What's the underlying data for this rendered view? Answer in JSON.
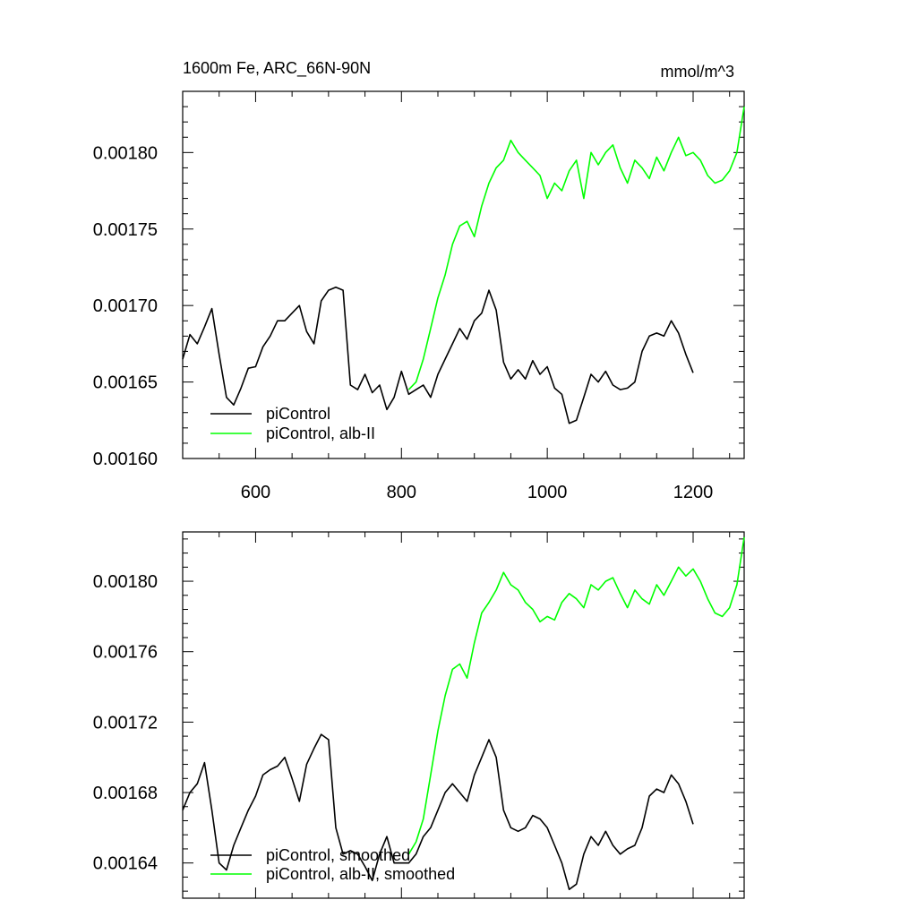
{
  "chart_data": [
    {
      "type": "line",
      "title": "1600m Fe, ARC_66N-90N",
      "units": "mmol/m^3",
      "xlim": [
        500,
        1270
      ],
      "ylim": [
        0.0016,
        0.00184
      ],
      "xticks": [
        600,
        800,
        1000,
        1200
      ],
      "yticks": [
        0.0016,
        0.00165,
        0.0017,
        0.00175,
        0.0018
      ],
      "ytick_labels": [
        "0.00160",
        "0.00165",
        "0.00170",
        "0.00175",
        "0.00180"
      ],
      "grid": false,
      "legend": "bottom-left",
      "series": [
        {
          "name": "piControl",
          "color": "#000000",
          "x": [
            500,
            510,
            520,
            530,
            540,
            550,
            560,
            570,
            580,
            590,
            600,
            610,
            620,
            630,
            640,
            650,
            660,
            670,
            680,
            690,
            700,
            710,
            720,
            730,
            740,
            750,
            760,
            770,
            780,
            790,
            800,
            810,
            820,
            830,
            840,
            850,
            860,
            870,
            880,
            890,
            900,
            910,
            920,
            930,
            940,
            950,
            960,
            970,
            980,
            990,
            1000,
            1010,
            1020,
            1030,
            1040,
            1050,
            1060,
            1070,
            1080,
            1090,
            1100,
            1110,
            1120,
            1130,
            1140,
            1150,
            1160,
            1170,
            1180,
            1190,
            1200
          ],
          "y": [
            0.001665,
            0.001681,
            0.001675,
            0.001686,
            0.001698,
            0.001668,
            0.00164,
            0.001635,
            0.001646,
            0.001659,
            0.00166,
            0.001673,
            0.00168,
            0.00169,
            0.00169,
            0.001695,
            0.0017,
            0.001683,
            0.001675,
            0.001703,
            0.00171,
            0.001712,
            0.00171,
            0.001648,
            0.001645,
            0.001655,
            0.001643,
            0.001648,
            0.001632,
            0.00164,
            0.001657,
            0.001642,
            0.001645,
            0.001648,
            0.00164,
            0.001655,
            0.001665,
            0.001675,
            0.001685,
            0.001678,
            0.00169,
            0.001695,
            0.00171,
            0.001697,
            0.001663,
            0.001652,
            0.001658,
            0.001652,
            0.001664,
            0.001655,
            0.00166,
            0.001646,
            0.001642,
            0.001623,
            0.001625,
            0.00164,
            0.001655,
            0.00165,
            0.001657,
            0.001648,
            0.001645,
            0.001646,
            0.00165,
            0.00167,
            0.00168,
            0.001682,
            0.00168,
            0.00169,
            0.001682,
            0.001668,
            0.001656
          ]
        },
        {
          "name": "piControl, alb-II",
          "color": "#00ff00",
          "x": [
            810,
            820,
            830,
            840,
            850,
            860,
            870,
            880,
            890,
            900,
            910,
            920,
            930,
            940,
            950,
            960,
            970,
            980,
            990,
            1000,
            1010,
            1020,
            1030,
            1040,
            1050,
            1060,
            1070,
            1080,
            1090,
            1100,
            1110,
            1120,
            1130,
            1140,
            1150,
            1160,
            1170,
            1180,
            1190,
            1200,
            1210,
            1220,
            1230,
            1240,
            1250,
            1260,
            1270
          ],
          "y": [
            0.001645,
            0.00165,
            0.001665,
            0.001685,
            0.001705,
            0.00172,
            0.00174,
            0.001752,
            0.001755,
            0.001745,
            0.001765,
            0.00178,
            0.00179,
            0.001795,
            0.001808,
            0.0018,
            0.001795,
            0.00179,
            0.001785,
            0.00177,
            0.00178,
            0.001775,
            0.001788,
            0.001795,
            0.00177,
            0.0018,
            0.001792,
            0.0018,
            0.001805,
            0.00179,
            0.00178,
            0.001795,
            0.00179,
            0.001783,
            0.001797,
            0.001788,
            0.0018,
            0.00181,
            0.001798,
            0.0018,
            0.001795,
            0.001785,
            0.00178,
            0.001782,
            0.001788,
            0.0018,
            0.00183
          ]
        }
      ]
    },
    {
      "type": "line",
      "xlim": [
        500,
        1270
      ],
      "ylim": [
        0.00162,
        0.001828
      ],
      "xticks": [
        600,
        800,
        1000,
        1200
      ],
      "yticks": [
        0.00164,
        0.00168,
        0.00172,
        0.00176,
        0.0018
      ],
      "ytick_labels": [
        "0.00164",
        "0.00168",
        "0.00172",
        "0.00176",
        "0.00180"
      ],
      "grid": false,
      "legend": "bottom-left",
      "series": [
        {
          "name": "piControl, smoothed",
          "color": "#000000",
          "x": [
            500,
            510,
            520,
            530,
            540,
            550,
            560,
            570,
            580,
            590,
            600,
            610,
            620,
            630,
            640,
            650,
            660,
            670,
            680,
            690,
            700,
            710,
            720,
            730,
            740,
            750,
            760,
            770,
            780,
            790,
            800,
            810,
            820,
            830,
            840,
            850,
            860,
            870,
            880,
            890,
            900,
            910,
            920,
            930,
            940,
            950,
            960,
            970,
            980,
            990,
            1000,
            1010,
            1020,
            1030,
            1040,
            1050,
            1060,
            1070,
            1080,
            1090,
            1100,
            1110,
            1120,
            1130,
            1140,
            1150,
            1160,
            1170,
            1180,
            1190,
            1200
          ],
          "y": [
            0.00167,
            0.00168,
            0.001685,
            0.001697,
            0.00167,
            0.00164,
            0.001636,
            0.00165,
            0.00166,
            0.00167,
            0.001678,
            0.00169,
            0.001693,
            0.001695,
            0.0017,
            0.001688,
            0.001675,
            0.001696,
            0.001705,
            0.001713,
            0.00171,
            0.00166,
            0.001645,
            0.001647,
            0.001645,
            0.001638,
            0.00163,
            0.001645,
            0.001655,
            0.00164,
            0.00164,
            0.00164,
            0.001645,
            0.001655,
            0.00166,
            0.00167,
            0.00168,
            0.001685,
            0.00168,
            0.001675,
            0.00169,
            0.0017,
            0.00171,
            0.0017,
            0.00167,
            0.00166,
            0.001658,
            0.00166,
            0.001667,
            0.001665,
            0.00166,
            0.00165,
            0.00164,
            0.001625,
            0.001628,
            0.001645,
            0.001655,
            0.00165,
            0.001658,
            0.00165,
            0.001645,
            0.001648,
            0.00165,
            0.00166,
            0.001678,
            0.001682,
            0.00168,
            0.00169,
            0.001685,
            0.001675,
            0.001662
          ]
        },
        {
          "name": "piControl, alb-II, smoothed",
          "color": "#00ff00",
          "x": [
            810,
            820,
            830,
            840,
            850,
            860,
            870,
            880,
            890,
            900,
            910,
            920,
            930,
            940,
            950,
            960,
            970,
            980,
            990,
            1000,
            1010,
            1020,
            1030,
            1040,
            1050,
            1060,
            1070,
            1080,
            1090,
            1100,
            1110,
            1120,
            1130,
            1140,
            1150,
            1160,
            1170,
            1180,
            1190,
            1200,
            1210,
            1220,
            1230,
            1240,
            1250,
            1260,
            1270
          ],
          "y": [
            0.001645,
            0.001652,
            0.001665,
            0.00169,
            0.001715,
            0.001735,
            0.00175,
            0.001753,
            0.001745,
            0.001765,
            0.001782,
            0.001788,
            0.001795,
            0.001805,
            0.001798,
            0.001795,
            0.001788,
            0.001784,
            0.001777,
            0.00178,
            0.001778,
            0.001788,
            0.001793,
            0.00179,
            0.001785,
            0.001798,
            0.001795,
            0.0018,
            0.001802,
            0.001793,
            0.001785,
            0.001795,
            0.00179,
            0.001787,
            0.001798,
            0.001792,
            0.0018,
            0.001808,
            0.001803,
            0.001807,
            0.0018,
            0.00179,
            0.001782,
            0.00178,
            0.001785,
            0.001798,
            0.001825
          ]
        }
      ]
    }
  ]
}
